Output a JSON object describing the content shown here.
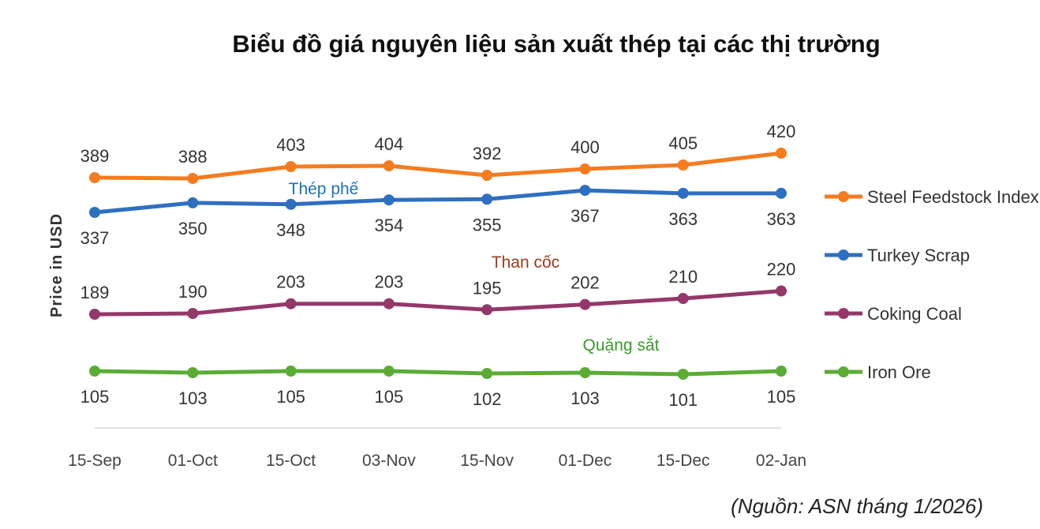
{
  "title": "Biểu đồ giá nguyên liệu sản xuất thép tại các thị trường",
  "source": "(Nguồn: ASN tháng 1/2026)",
  "chart_data": {
    "type": "line",
    "ylabel": "Price in USD",
    "categories": [
      "15-Sep",
      "01-Oct",
      "15-Oct",
      "03-Nov",
      "15-Nov",
      "01-Dec",
      "15-Dec",
      "02-Jan"
    ],
    "series": [
      {
        "name": "Steel Feedstock Index",
        "color": "#f47c20",
        "values": [
          389,
          388,
          403,
          404,
          392,
          400,
          405,
          420
        ]
      },
      {
        "name": "Turkey Scrap",
        "color": "#2f6fc0",
        "values": [
          337,
          350,
          348,
          354,
          355,
          367,
          363,
          363
        ]
      },
      {
        "name": "Coking Coal",
        "color": "#94386a",
        "values": [
          189,
          190,
          203,
          203,
          195,
          202,
          210,
          220
        ]
      },
      {
        "name": "Iron Ore",
        "color": "#5aac35",
        "values": [
          105,
          103,
          105,
          105,
          102,
          103,
          101,
          105
        ]
      }
    ],
    "annotations": [
      {
        "text": "Thép phế",
        "color": "#1f6fb5"
      },
      {
        "text": "Than cốc",
        "color": "#a03a1a"
      },
      {
        "text": "Quặng sắt",
        "color": "#3a9a2a"
      }
    ],
    "legend_position": "right",
    "grid": false
  }
}
